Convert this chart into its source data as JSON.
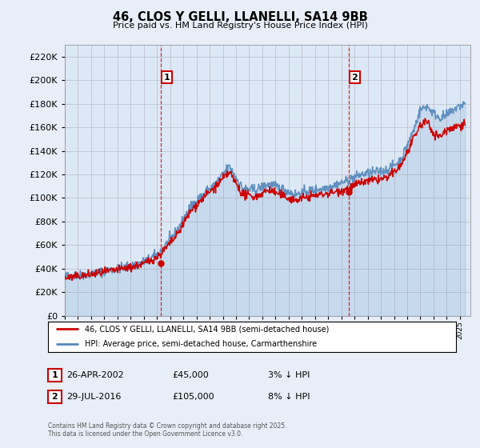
{
  "title": "46, CLOS Y GELLI, LLANELLI, SA14 9BB",
  "subtitle": "Price paid vs. HM Land Registry's House Price Index (HPI)",
  "ytick_vals": [
    0,
    20000,
    40000,
    60000,
    80000,
    100000,
    120000,
    140000,
    160000,
    180000,
    200000,
    220000
  ],
  "ylim": [
    0,
    230000
  ],
  "xlim_start": 1995.0,
  "xlim_end": 2025.8,
  "hpi_color": "#5588bb",
  "price_color": "#cc0000",
  "sale1_date": 2002.32,
  "sale1_price": 45000,
  "sale1_label": "1",
  "sale2_date": 2016.57,
  "sale2_price": 105000,
  "sale2_label": "2",
  "legend_hpi": "HPI: Average price, semi-detached house, Carmarthenshire",
  "legend_price": "46, CLOS Y GELLI, LLANELLI, SA14 9BB (semi-detached house)",
  "footnote": "Contains HM Land Registry data © Crown copyright and database right 2025.\nThis data is licensed under the Open Government Licence v3.0.",
  "background_color": "#e8eef8",
  "plot_bg_color": "#dce8f5",
  "grid_color": "#bbbbcc"
}
